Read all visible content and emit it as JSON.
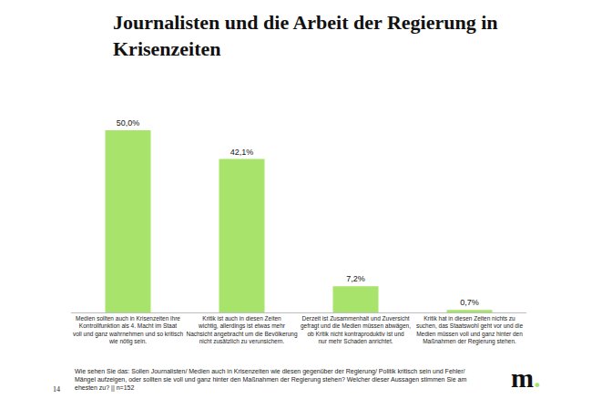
{
  "chart_data": {
    "type": "bar",
    "title": "Journalisten und die Arbeit der Regierung in Krisenzeiten",
    "categories": [
      "Medien sollten auch in Krisenzeiten ihre Kontrollfunktion als 4. Macht im Staat voll und ganz wahrnehmen und so kritisch wie nötig sein.",
      "Kritik ist auch in diesen Zeiten wichtig, allerdings ist etwas mehr Nachsicht angebracht um die Bevölkerung nicht zusätzlich zu verunsichern.",
      "Derzeit ist Zusammenhalt und Zuversicht gefragt und die Medien müssen abwägen, ob Kritik nicht kontraproduktiv ist und nur mehr Schaden anrichtet.",
      "Kritik hat in diesen Zeiten nichts zu suchen, das Staatswohl geht vor und die Medien müssen voll und ganz hinter den Maßnahmen der Regierung stehen."
    ],
    "values": [
      50.0,
      42.1,
      7.2,
      0.7
    ],
    "value_labels": [
      "50,0%",
      "42,1%",
      "7,2%",
      "0,7%"
    ],
    "data_labels": true,
    "color": "#a8e46c",
    "ylim": [
      0,
      50
    ],
    "tick_labels": "x",
    "grid": false,
    "note": "Wie sehen Sie das: Sollen Journalisten/ Medien auch in Krisenzeiten wie diesen gegenüber der Regierung/ Politik kritisch sein und Fehler/ Mängel aufzeigen, oder sollten sie voll und ganz hinter den Maßnahmen der Regierung stehen? Welcher dieser Aussagen stimmen Sie am ehesten zu? || n=152",
    "page_number": "14",
    "logo": "m."
  }
}
